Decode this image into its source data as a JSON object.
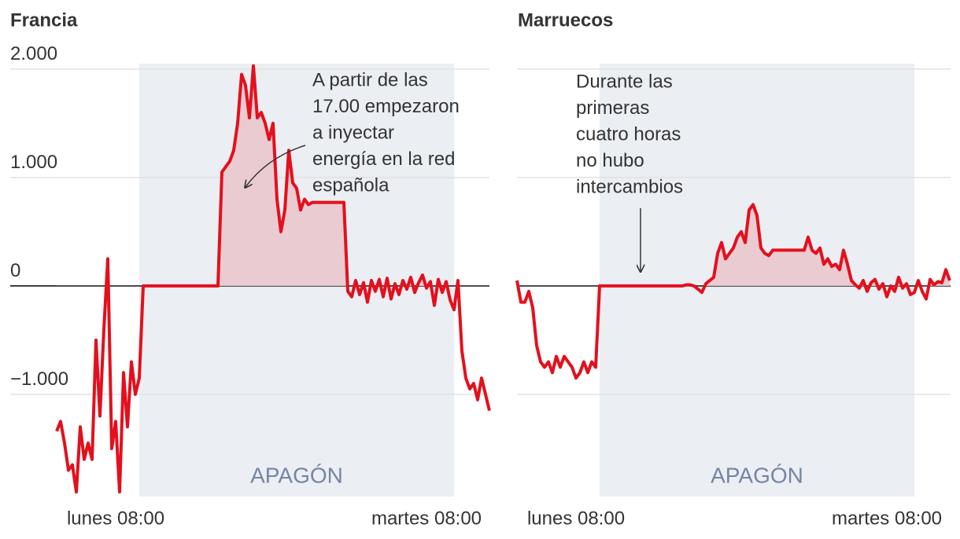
{
  "chart_data": [
    {
      "type": "line",
      "title": "Francia",
      "categories": [
        null,
        null,
        null,
        null,
        null,
        null,
        null,
        null,
        null,
        null,
        null,
        null,
        null,
        null,
        null,
        "lunes 08:00",
        null,
        null,
        null,
        null,
        null,
        null,
        null,
        null,
        null,
        null,
        null,
        null,
        null,
        null,
        null,
        null,
        null,
        null,
        null,
        null,
        null,
        null,
        null,
        null,
        null,
        null,
        null,
        null,
        null,
        null,
        null,
        null,
        null,
        null,
        null,
        null,
        null,
        null,
        null,
        null,
        null,
        null,
        null,
        null,
        null,
        null,
        null,
        null,
        null,
        null,
        null,
        null,
        null,
        null,
        null,
        null,
        null,
        null,
        null,
        null,
        null,
        null,
        null,
        null,
        null,
        null,
        null,
        null,
        null,
        null,
        null,
        null,
        null,
        null,
        null,
        null,
        null,
        null,
        "martes 08:00",
        null,
        null,
        null,
        null,
        null,
        null,
        null,
        null,
        null,
        null,
        null,
        null,
        null,
        null,
        null,
        null
      ],
      "values": [
        -1340,
        -1250,
        -1450,
        -1700,
        -1650,
        -1900,
        -1300,
        -1600,
        -1450,
        -1600,
        -500,
        -1200,
        -400,
        250,
        -1500,
        -1250,
        -1900,
        -800,
        -1300,
        -700,
        -1000,
        -850,
        0,
        0,
        0,
        0,
        0,
        0,
        0,
        0,
        0,
        0,
        0,
        0,
        0,
        0,
        0,
        0,
        0,
        0,
        0,
        0,
        1050,
        1100,
        1150,
        1250,
        1500,
        1950,
        1850,
        1550,
        2030,
        1550,
        1600,
        1500,
        1350,
        1500,
        800,
        500,
        700,
        1250,
        950,
        900,
        700,
        800,
        750,
        770,
        770,
        770,
        770,
        770,
        770,
        770,
        770,
        770,
        -50,
        -100,
        50,
        -80,
        30,
        -150,
        50,
        -50,
        60,
        -100,
        70,
        -120,
        20,
        -80,
        50,
        -30,
        80,
        -60,
        30,
        100,
        -20,
        40,
        -180,
        60,
        -60,
        40,
        -130,
        -220,
        50,
        -600,
        -850,
        -950,
        -900,
        -1050,
        -850,
        -1000,
        -1150
      ],
      "color": "#e3101d",
      "fill_color": "#eacbd1",
      "ylim": [
        -1950,
        2050
      ],
      "yticks": [
        {
          "value": 2000,
          "label": "2.000"
        },
        {
          "value": 1000,
          "label": "1.000"
        },
        0,
        {
          "value": -1000,
          "label": "−1.000"
        }
      ],
      "ytick_labels": true,
      "grid": true,
      "highlight": {
        "label": "APAGÓN",
        "from": 21,
        "to": 101
      },
      "annotation": [
        "A partir de las",
        "17.00 empezaron",
        "a inyectar",
        "energía en la red",
        "española"
      ]
    },
    {
      "type": "line",
      "title": "Marruecos",
      "categories": [
        null,
        null,
        null,
        null,
        null,
        null,
        null,
        null,
        null,
        null,
        null,
        null,
        null,
        null,
        null,
        "lunes 08:00",
        null,
        null,
        null,
        null,
        null,
        null,
        null,
        null,
        null,
        null,
        null,
        null,
        null,
        null,
        null,
        null,
        null,
        null,
        null,
        null,
        null,
        null,
        null,
        null,
        null,
        null,
        null,
        null,
        null,
        null,
        null,
        null,
        null,
        null,
        null,
        null,
        null,
        null,
        null,
        null,
        null,
        null,
        null,
        null,
        null,
        null,
        null,
        null,
        null,
        null,
        null,
        null,
        null,
        null,
        null,
        null,
        null,
        null,
        null,
        null,
        null,
        null,
        null,
        null,
        null,
        null,
        null,
        null,
        null,
        null,
        null,
        null,
        null,
        null,
        null,
        null,
        null,
        null,
        "martes 08:00",
        null,
        null,
        null,
        null,
        null,
        null,
        null,
        null,
        null,
        null,
        null,
        null,
        null,
        null,
        null,
        null
      ],
      "values": [
        50,
        -150,
        -150,
        -50,
        -200,
        -550,
        -700,
        -750,
        -700,
        -800,
        -650,
        -750,
        -650,
        -700,
        -750,
        -850,
        -800,
        -700,
        -800,
        -700,
        -750,
        0,
        0,
        0,
        0,
        0,
        0,
        0,
        0,
        0,
        0,
        0,
        0,
        0,
        0,
        0,
        0,
        0,
        0,
        0,
        0,
        0,
        0,
        10,
        10,
        0,
        -30,
        -60,
        20,
        50,
        80,
        300,
        400,
        250,
        300,
        350,
        450,
        500,
        400,
        700,
        750,
        650,
        350,
        300,
        280,
        330,
        330,
        330,
        330,
        330,
        330,
        330,
        330,
        330,
        450,
        330,
        300,
        350,
        200,
        250,
        180,
        200,
        150,
        330,
        200,
        50,
        10,
        -20,
        50,
        -50,
        30,
        60,
        -30,
        20,
        -100,
        0,
        -50,
        80,
        -20,
        20,
        -80,
        -60,
        50,
        -50,
        -120,
        60,
        10,
        40,
        30,
        150,
        50
      ],
      "color": "#e3101d",
      "fill_color": "#eacbd1",
      "ylim": [
        -1950,
        2050
      ],
      "yticks": [
        2000,
        1000,
        0,
        -1000
      ],
      "ytick_labels": false,
      "grid": true,
      "highlight": {
        "label": "APAGÓN",
        "from": 21,
        "to": 101
      },
      "annotation": [
        "Durante las",
        "primeras",
        "cuatro horas",
        "no hubo",
        "intercambios"
      ]
    }
  ]
}
